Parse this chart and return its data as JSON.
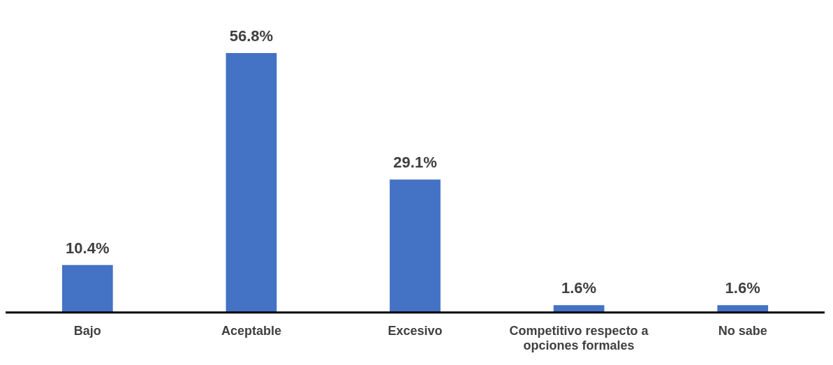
{
  "chart_data": {
    "type": "bar",
    "categories": [
      "Bajo",
      "Aceptable",
      "Excesivo",
      "Competitivo respecto a opciones formales",
      "No sabe"
    ],
    "values": [
      10.4,
      56.8,
      29.1,
      1.6,
      1.6
    ],
    "value_labels": [
      "10.4%",
      "56.8%",
      "29.1%",
      "1.6%",
      "1.6%"
    ],
    "color": "#4472c4",
    "grid": false,
    "legend": false
  }
}
